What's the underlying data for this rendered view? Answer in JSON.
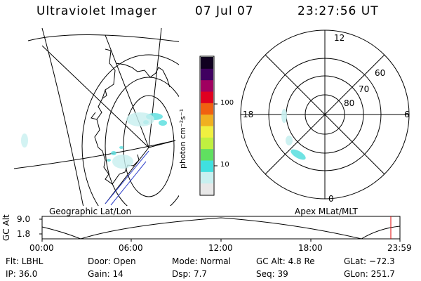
{
  "header": {
    "instrument": "Ultraviolet Imager",
    "date": "07 Jul 07",
    "time": "23:27:56 UT"
  },
  "colorbar": {
    "label": "photon cm⁻²s⁻¹",
    "ticks": [
      "100",
      "10"
    ],
    "colors": [
      "#e8e8e8",
      "#c8f0f0",
      "#40e0e0",
      "#60e060",
      "#c0f040",
      "#f0f040",
      "#f0b020",
      "#f06010",
      "#e00020",
      "#a00060",
      "#400060",
      "#100020"
    ]
  },
  "polar": {
    "mlt_labels": {
      "top": "12",
      "left": "18",
      "right": "6",
      "bottom": "0"
    },
    "lat_labels": [
      "60",
      "70",
      "80"
    ]
  },
  "map_titles": {
    "left": "Geographic Lat/Lon",
    "right": "Apex MLat/MLT"
  },
  "altitude_plot": {
    "ylabel": "GC Alt",
    "yticks": [
      "9.0",
      "1.8"
    ],
    "xticks": [
      "00:00",
      "06:00",
      "12:00",
      "18:00",
      "23:59"
    ]
  },
  "info": {
    "flt": "Flt: LBHL",
    "ip": "IP: 36.0",
    "door": "Door: Open",
    "gain": "Gain: 14",
    "mode": "Mode: Normal",
    "dsp": "Dsp:    7.7",
    "gcalt": "GC Alt: 4.8 Re",
    "seq": "Seq: 39",
    "glat": "GLat: −72.3",
    "glon": "GLon: 251.7"
  }
}
